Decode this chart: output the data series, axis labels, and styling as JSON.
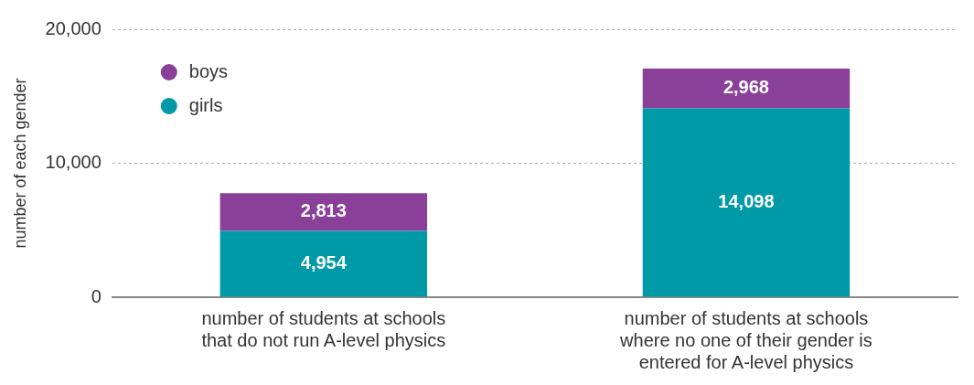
{
  "chart_data": {
    "type": "bar",
    "stacked": true,
    "ylabel": "number of each gender",
    "categories": [
      "number of students at schools that do not run A-level physics",
      "number of students at schools where no one of their gender is entered for A-level physics"
    ],
    "series": [
      {
        "name": "girls",
        "color": "#0099a8",
        "values": [
          4954,
          14098
        ],
        "value_labels": [
          "4,954",
          "14,098"
        ]
      },
      {
        "name": "boys",
        "color": "#8a3f98",
        "values": [
          2813,
          2968
        ],
        "value_labels": [
          "2,813",
          "2,968"
        ]
      }
    ],
    "ylim": [
      0,
      20000
    ],
    "yticks": [
      {
        "value": 0,
        "label": "0"
      },
      {
        "value": 10000,
        "label": "10,000"
      },
      {
        "value": 20000,
        "label": "20,000"
      }
    ],
    "grid": "y",
    "legend": "top left"
  }
}
